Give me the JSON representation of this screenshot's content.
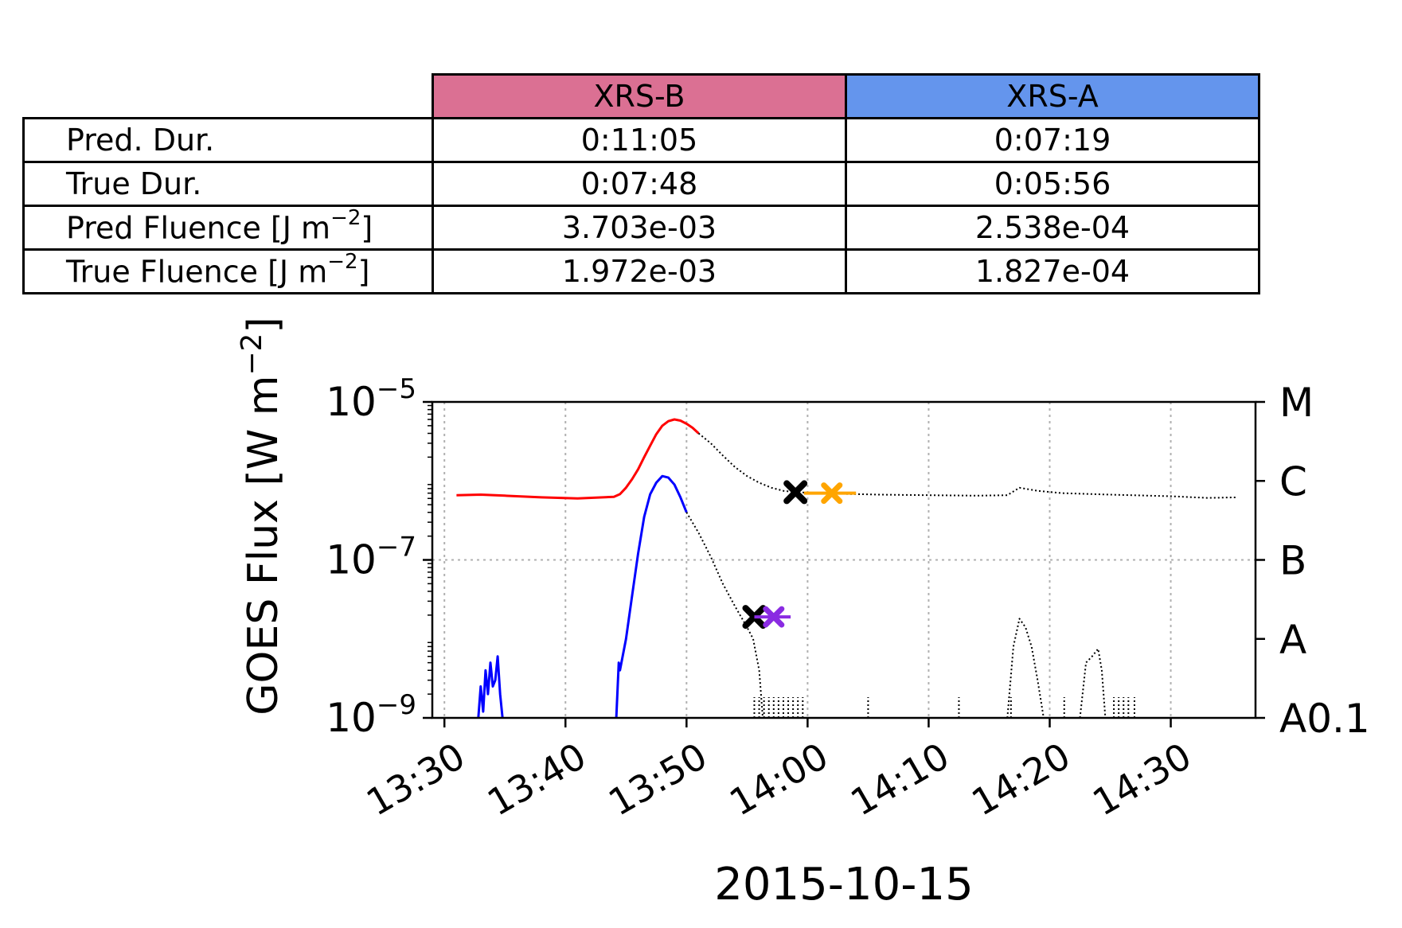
{
  "table": {
    "columns": [
      "XRS-B",
      "XRS-A"
    ],
    "column_colors": [
      "#db7093",
      "#6495ed"
    ],
    "rows": [
      {
        "label": "Pred. Dur.",
        "unit_prefix": "",
        "unit_sup": "",
        "unit_suffix": "",
        "values": [
          "0:11:05",
          "0:07:19"
        ]
      },
      {
        "label": "True Dur.",
        "unit_prefix": "",
        "unit_sup": "",
        "unit_suffix": "",
        "values": [
          "0:07:48",
          "0:05:56"
        ]
      },
      {
        "label": "Pred Fluence",
        "unit_prefix": " [J m",
        "unit_sup": "−2",
        "unit_suffix": "]",
        "values": [
          "3.703e-03",
          "2.538e-04"
        ]
      },
      {
        "label": "True Fluence",
        "unit_prefix": " [J m",
        "unit_sup": "−2",
        "unit_suffix": "]",
        "values": [
          "1.972e-03",
          "1.827e-04"
        ]
      }
    ]
  },
  "chart_data": {
    "type": "line",
    "xlabel": "2015-10-15",
    "ylabel_main": "GOES Flux [W m",
    "ylabel_sup": "−2",
    "ylabel_end": "]",
    "y_scale": "log",
    "ylim_exp": [
      -9,
      -5
    ],
    "xlim": [
      "13:29",
      "14:37"
    ],
    "x_ticks": [
      "13:30",
      "13:40",
      "13:50",
      "14:00",
      "14:10",
      "14:20",
      "14:30"
    ],
    "y_ticks": [
      {
        "base": "10",
        "exp": "−9",
        "value": 1e-09
      },
      {
        "base": "10",
        "exp": "−7",
        "value": 1e-07
      },
      {
        "base": "10",
        "exp": "−5",
        "value": 1e-05
      }
    ],
    "right_axis_ticks": [
      {
        "label": "M",
        "value": 1e-05
      },
      {
        "label": "C",
        "value": 1e-06
      },
      {
        "label": "B",
        "value": 1e-07
      },
      {
        "label": "A",
        "value": 1e-08
      },
      {
        "label": "A0.1",
        "value": 1e-09
      }
    ],
    "grid": true,
    "colors": {
      "xrsb_fit": "#ff0000",
      "xrsa_fit": "#0000ff",
      "observed": "#000000",
      "pred_end_b": "#ffa500",
      "pred_end_a": "#8a2be2"
    },
    "series": [
      {
        "style": "solid",
        "color_key": "xrsb_fit",
        "points": [
          [
            "13:31.0",
            6.6e-07
          ],
          [
            "13:33.0",
            6.7e-07
          ],
          [
            "13:35.0",
            6.5e-07
          ],
          [
            "13:38.0",
            6.2e-07
          ],
          [
            "13:41.0",
            6e-07
          ],
          [
            "13:44.0",
            6.3e-07
          ],
          [
            "13:44.5",
            6.8e-07
          ],
          [
            "13:45.0",
            8.2e-07
          ],
          [
            "13:45.5",
            1.05e-06
          ],
          [
            "13:46.0",
            1.4e-06
          ],
          [
            "13:46.5",
            2e-06
          ],
          [
            "13:47.0",
            2.8e-06
          ],
          [
            "13:47.5",
            3.9e-06
          ],
          [
            "13:48.0",
            5e-06
          ],
          [
            "13:48.5",
            5.7e-06
          ],
          [
            "13:49.0",
            6e-06
          ],
          [
            "13:49.5",
            5.8e-06
          ],
          [
            "13:50.0",
            5.3e-06
          ],
          [
            "13:50.5",
            4.7e-06
          ],
          [
            "13:51.0",
            4e-06
          ]
        ]
      },
      {
        "style": "dotted",
        "color_key": "observed",
        "points": [
          [
            "13:51.0",
            4e-06
          ],
          [
            "13:52.0",
            3e-06
          ],
          [
            "13:53.0",
            2.1e-06
          ],
          [
            "13:54.0",
            1.5e-06
          ],
          [
            "13:55.0",
            1.15e-06
          ],
          [
            "13:56.0",
            9.5e-07
          ],
          [
            "13:57.0",
            8.2e-07
          ],
          [
            "13:58.0",
            7.5e-07
          ],
          [
            "13:59.0",
            7.2e-07
          ],
          [
            "14:02.0",
            6.9e-07
          ],
          [
            "14:06.0",
            6.7e-07
          ],
          [
            "14:10.0",
            6.6e-07
          ],
          [
            "14:14.0",
            6.5e-07
          ],
          [
            "14:16.5",
            6.6e-07
          ],
          [
            "14:17.5",
            8.2e-07
          ],
          [
            "14:19.0",
            7.5e-07
          ],
          [
            "14:21.0",
            7e-07
          ],
          [
            "14:25.0",
            6.7e-07
          ],
          [
            "14:30.0",
            6.4e-07
          ],
          [
            "14:33.0",
            6.1e-07
          ],
          [
            "14:35.5",
            6.2e-07
          ]
        ]
      },
      {
        "style": "solid",
        "color_key": "xrsa_fit",
        "points": [
          [
            "13:44.2",
            1e-09
          ],
          [
            "13:44.4",
            5e-09
          ],
          [
            "13:44.5",
            4e-09
          ],
          [
            "13:45.0",
            1e-08
          ],
          [
            "13:45.5",
            3.5e-08
          ],
          [
            "13:46.0",
            1.2e-07
          ],
          [
            "13:46.5",
            3.5e-07
          ],
          [
            "13:47.0",
            6.8e-07
          ],
          [
            "13:47.5",
            9.5e-07
          ],
          [
            "13:48.0",
            1.15e-06
          ],
          [
            "13:48.5",
            1.1e-06
          ],
          [
            "13:49.0",
            9e-07
          ],
          [
            "13:49.5",
            6.2e-07
          ],
          [
            "13:50.0",
            4e-07
          ]
        ]
      },
      {
        "style": "dotted",
        "color_key": "observed",
        "points": [
          [
            "13:50.0",
            4e-07
          ],
          [
            "13:51.0",
            2.2e-07
          ],
          [
            "13:52.0",
            1.1e-07
          ],
          [
            "13:53.0",
            5e-08
          ],
          [
            "13:54.0",
            2.6e-08
          ],
          [
            "13:55.0",
            1.4e-08
          ],
          [
            "13:55.5",
            1e-08
          ],
          [
            "13:56.0",
            4e-09
          ],
          [
            "13:56.3",
            1e-09
          ]
        ]
      },
      {
        "style": "solid",
        "color_key": "xrsa_fit",
        "points": [
          [
            "13:32.8",
            1e-09
          ],
          [
            "13:33.0",
            2.5e-09
          ],
          [
            "13:33.2",
            1.2e-09
          ],
          [
            "13:33.4",
            4e-09
          ],
          [
            "13:33.6",
            2e-09
          ],
          [
            "13:33.8",
            5e-09
          ],
          [
            "13:34.0",
            2.5e-09
          ],
          [
            "13:34.2",
            3e-09
          ],
          [
            "13:34.4",
            6e-09
          ],
          [
            "13:34.6",
            2e-09
          ],
          [
            "13:34.8",
            1e-09
          ]
        ]
      },
      {
        "style": "dotted",
        "color_key": "observed",
        "points": [
          [
            "14:16.5",
            1e-09
          ],
          [
            "14:17.0",
            8e-09
          ],
          [
            "14:17.5",
            1.8e-08
          ],
          [
            "14:18.0",
            1.4e-08
          ],
          [
            "14:18.5",
            8e-09
          ],
          [
            "14:19.0",
            3e-09
          ],
          [
            "14:19.5",
            1e-09
          ]
        ]
      },
      {
        "style": "dotted",
        "color_key": "observed",
        "points": [
          [
            "14:22.5",
            1e-09
          ],
          [
            "14:23.0",
            5e-09
          ],
          [
            "14:23.5",
            6e-09
          ],
          [
            "14:24.0",
            7.5e-09
          ],
          [
            "14:24.3",
            4e-09
          ],
          [
            "14:24.6",
            1e-09
          ]
        ]
      }
    ],
    "noise_ticks_x": [
      "13:55.6",
      "13:56.0",
      "13:56.4",
      "13:56.8",
      "13:57.2",
      "13:57.6",
      "13:58.0",
      "13:58.4",
      "13:58.8",
      "13:59.2",
      "13:59.6",
      "14:05.0",
      "14:12.5",
      "14:16.8",
      "14:21.2",
      "14:25.3",
      "14:25.7",
      "14:26.1",
      "14:26.5",
      "14:27.0"
    ],
    "markers": [
      {
        "type": "x",
        "x": "13:59.0",
        "y": 7.2e-07,
        "color_key": "observed"
      },
      {
        "type": "x",
        "x": "13:55.6",
        "y": 1.9e-08,
        "color_key": "observed"
      },
      {
        "type": "errbar",
        "x": "14:02.0",
        "y": 7e-07,
        "xmin": "13:59.7",
        "xmax": "14:04.0",
        "color_key": "pred_end_b"
      },
      {
        "type": "errbar",
        "x": "13:57.2",
        "y": 1.9e-08,
        "xmin": "13:55.6",
        "xmax": "13:58.6",
        "color_key": "pred_end_a"
      }
    ]
  }
}
